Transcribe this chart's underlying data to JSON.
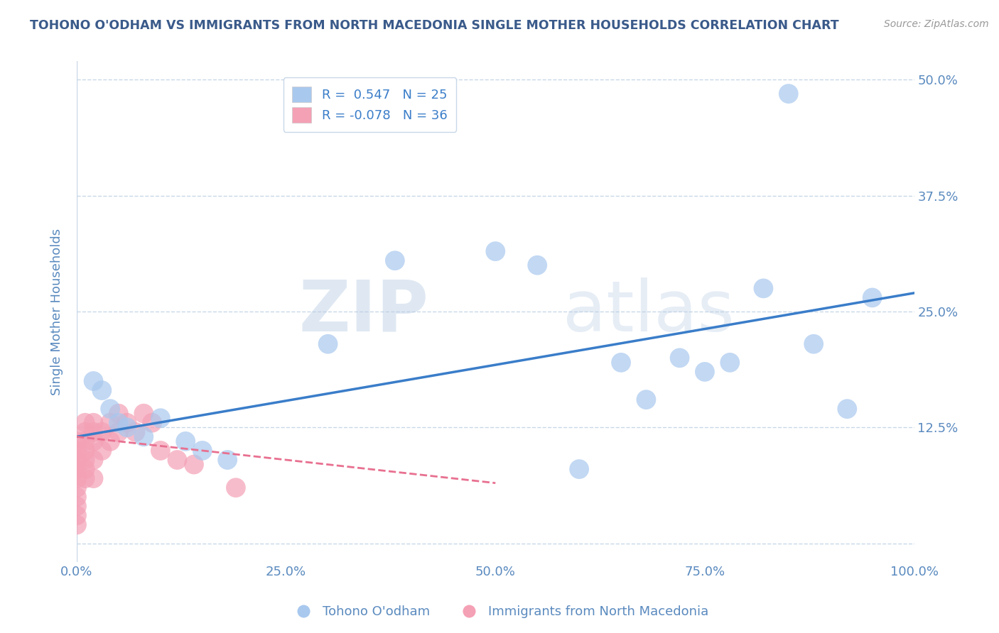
{
  "title": "TOHONO O'ODHAM VS IMMIGRANTS FROM NORTH MACEDONIA SINGLE MOTHER HOUSEHOLDS CORRELATION CHART",
  "source": "Source: ZipAtlas.com",
  "ylabel": "Single Mother Households",
  "xlabel": "",
  "xlim": [
    0,
    1.0
  ],
  "ylim": [
    -0.02,
    0.52
  ],
  "yticks": [
    0.0,
    0.125,
    0.25,
    0.375,
    0.5
  ],
  "ytick_labels": [
    "",
    "12.5%",
    "25.0%",
    "37.5%",
    "50.0%"
  ],
  "xticks": [
    0.0,
    0.25,
    0.5,
    0.75,
    1.0
  ],
  "xtick_labels": [
    "0.0%",
    "25.0%",
    "50.0%",
    "75.0%",
    "100.0%"
  ],
  "blue_label": "Tohono O'odham",
  "pink_label": "Immigrants from North Macedonia",
  "blue_R": 0.547,
  "blue_N": 25,
  "pink_R": -0.078,
  "pink_N": 36,
  "blue_color": "#A8C8EE",
  "pink_color": "#F4A0B5",
  "blue_line_color": "#3A7DC9",
  "pink_line_color": "#E87090",
  "watermark_zip": "ZIP",
  "watermark_atlas": "atlas",
  "background_color": "#FFFFFF",
  "title_color": "#3A5A8A",
  "axis_color": "#5A8ABF",
  "grid_color": "#C8D8E8",
  "blue_scatter_x": [
    0.02,
    0.03,
    0.04,
    0.05,
    0.06,
    0.08,
    0.1,
    0.13,
    0.15,
    0.18,
    0.3,
    0.38,
    0.5,
    0.55,
    0.6,
    0.65,
    0.68,
    0.72,
    0.75,
    0.78,
    0.82,
    0.85,
    0.88,
    0.92,
    0.95
  ],
  "blue_scatter_y": [
    0.175,
    0.165,
    0.145,
    0.13,
    0.125,
    0.115,
    0.135,
    0.11,
    0.1,
    0.09,
    0.215,
    0.305,
    0.315,
    0.3,
    0.08,
    0.195,
    0.155,
    0.2,
    0.185,
    0.195,
    0.275,
    0.485,
    0.215,
    0.145,
    0.265
  ],
  "pink_scatter_x": [
    0.0,
    0.0,
    0.0,
    0.0,
    0.0,
    0.0,
    0.0,
    0.0,
    0.0,
    0.0,
    0.01,
    0.01,
    0.01,
    0.01,
    0.01,
    0.01,
    0.01,
    0.02,
    0.02,
    0.02,
    0.02,
    0.02,
    0.03,
    0.03,
    0.04,
    0.04,
    0.05,
    0.05,
    0.06,
    0.07,
    0.08,
    0.09,
    0.1,
    0.12,
    0.14,
    0.19
  ],
  "pink_scatter_y": [
    0.11,
    0.1,
    0.09,
    0.08,
    0.07,
    0.06,
    0.05,
    0.04,
    0.03,
    0.02,
    0.13,
    0.12,
    0.11,
    0.1,
    0.09,
    0.08,
    0.07,
    0.13,
    0.12,
    0.11,
    0.09,
    0.07,
    0.12,
    0.1,
    0.13,
    0.11,
    0.14,
    0.12,
    0.13,
    0.12,
    0.14,
    0.13,
    0.1,
    0.09,
    0.085,
    0.06
  ],
  "blue_line_x0": 0.0,
  "blue_line_y0": 0.115,
  "blue_line_x1": 1.0,
  "blue_line_y1": 0.27,
  "pink_line_x0": 0.0,
  "pink_line_y0": 0.115,
  "pink_line_x1": 0.5,
  "pink_line_y1": 0.065
}
